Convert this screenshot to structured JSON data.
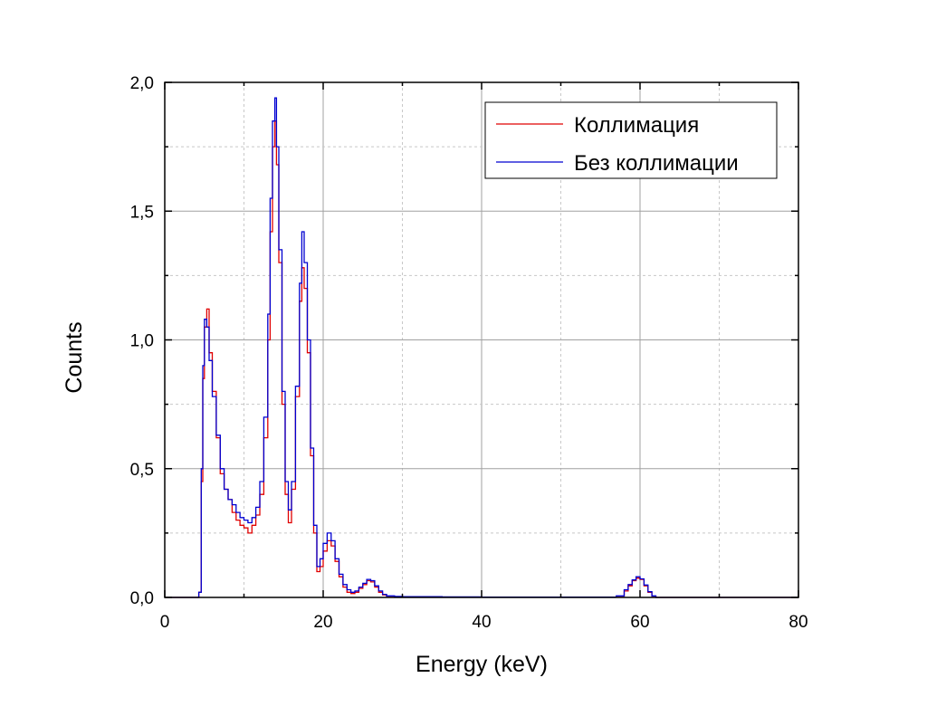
{
  "chart_data": {
    "type": "line",
    "xlabel": "Energy (keV)",
    "ylabel": "Counts",
    "xlim": [
      0,
      80
    ],
    "ylim": [
      0,
      2.0
    ],
    "x_ticks": [
      "0",
      "20",
      "40",
      "60",
      "80"
    ],
    "y_ticks": [
      "0,0",
      "0,5",
      "1,0",
      "1,5",
      "2,0"
    ],
    "grid": true,
    "legend_position": "top-right",
    "series": [
      {
        "name": "Коллимация",
        "color": "#e00000",
        "x": [
          0,
          4.3,
          4.6,
          4.8,
          5.0,
          5.3,
          5.6,
          6.0,
          6.5,
          7.0,
          7.5,
          8.0,
          8.5,
          9.0,
          9.5,
          10.0,
          10.5,
          11.0,
          11.5,
          12.0,
          12.5,
          13.0,
          13.3,
          13.6,
          13.9,
          14.1,
          14.4,
          14.8,
          15.2,
          15.6,
          16.0,
          16.5,
          17.0,
          17.3,
          17.6,
          18.0,
          18.4,
          18.8,
          19.2,
          19.6,
          20.0,
          20.5,
          21.0,
          21.5,
          22.0,
          22.5,
          23.0,
          23.5,
          24.0,
          24.5,
          25.0,
          25.5,
          26.0,
          26.5,
          27.0,
          27.5,
          28.0,
          29.0,
          30.0,
          35.0,
          40.0,
          45.0,
          50.0,
          55.0,
          57.0,
          58.0,
          58.5,
          59.0,
          59.5,
          60.0,
          60.5,
          61.0,
          61.5,
          62.0,
          70.0,
          80.0
        ],
        "y": [
          0,
          0.02,
          0.45,
          0.85,
          1.05,
          1.12,
          0.95,
          0.8,
          0.62,
          0.48,
          0.42,
          0.38,
          0.33,
          0.3,
          0.28,
          0.27,
          0.25,
          0.28,
          0.32,
          0.4,
          0.62,
          1.0,
          1.42,
          1.75,
          1.85,
          1.68,
          1.3,
          0.75,
          0.4,
          0.29,
          0.42,
          0.78,
          1.15,
          1.28,
          1.2,
          0.95,
          0.55,
          0.25,
          0.1,
          0.12,
          0.18,
          0.22,
          0.2,
          0.14,
          0.08,
          0.04,
          0.02,
          0.015,
          0.02,
          0.035,
          0.05,
          0.065,
          0.06,
          0.04,
          0.02,
          0.01,
          0.005,
          0.003,
          0.002,
          0.001,
          0.001,
          0.001,
          0.001,
          0.001,
          0.005,
          0.025,
          0.045,
          0.065,
          0.075,
          0.07,
          0.045,
          0.02,
          0.005,
          0,
          0,
          0
        ]
      },
      {
        "name": "Без коллимации",
        "color": "#0000d0",
        "x": [
          0,
          4.3,
          4.6,
          4.8,
          5.0,
          5.3,
          5.6,
          6.0,
          6.5,
          7.0,
          7.5,
          8.0,
          8.5,
          9.0,
          9.5,
          10.0,
          10.5,
          11.0,
          11.5,
          12.0,
          12.5,
          13.0,
          13.3,
          13.6,
          13.9,
          14.1,
          14.4,
          14.8,
          15.2,
          15.6,
          16.0,
          16.5,
          17.0,
          17.3,
          17.6,
          18.0,
          18.4,
          18.8,
          19.2,
          19.6,
          20.0,
          20.5,
          21.0,
          21.5,
          22.0,
          22.5,
          23.0,
          23.5,
          24.0,
          24.5,
          25.0,
          25.5,
          26.0,
          26.5,
          27.0,
          27.5,
          28.0,
          29.0,
          30.0,
          35.0,
          40.0,
          45.0,
          50.0,
          55.0,
          57.0,
          58.0,
          58.5,
          59.0,
          59.5,
          60.0,
          60.5,
          61.0,
          61.5,
          62.0,
          70.0,
          80.0
        ],
        "y": [
          0,
          0.02,
          0.5,
          0.9,
          1.08,
          1.05,
          0.92,
          0.78,
          0.63,
          0.5,
          0.42,
          0.38,
          0.36,
          0.33,
          0.31,
          0.3,
          0.29,
          0.31,
          0.35,
          0.45,
          0.7,
          1.1,
          1.55,
          1.85,
          1.94,
          1.75,
          1.35,
          0.8,
          0.45,
          0.34,
          0.45,
          0.82,
          1.22,
          1.42,
          1.3,
          1.0,
          0.58,
          0.28,
          0.12,
          0.15,
          0.21,
          0.25,
          0.22,
          0.15,
          0.09,
          0.05,
          0.03,
          0.02,
          0.025,
          0.04,
          0.055,
          0.07,
          0.065,
          0.045,
          0.025,
          0.012,
          0.006,
          0.004,
          0.003,
          0.002,
          0.001,
          0.001,
          0.001,
          0.001,
          0.006,
          0.03,
          0.05,
          0.068,
          0.08,
          0.072,
          0.048,
          0.022,
          0.006,
          0,
          0,
          0
        ]
      }
    ]
  }
}
